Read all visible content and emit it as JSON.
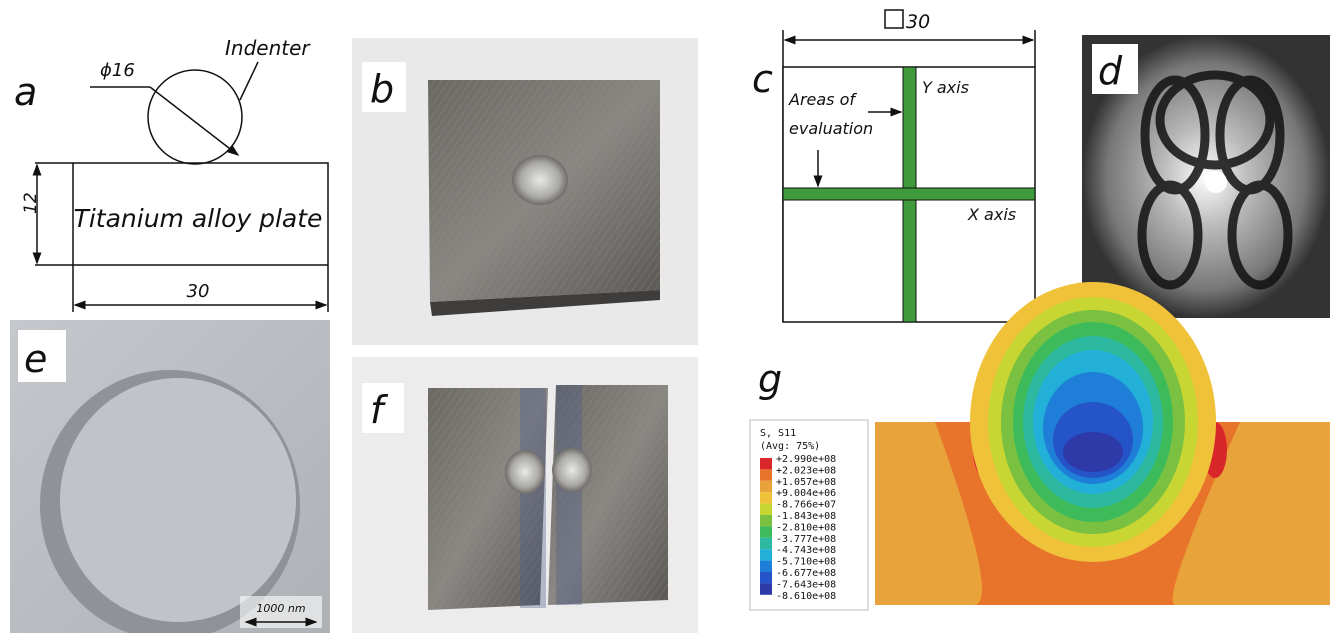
{
  "panels": {
    "a": {
      "label": "a",
      "indenter": "Indenter",
      "diameter": "ϕ16",
      "height": "12",
      "plate": "Titanium alloy plate",
      "width": "30"
    },
    "b": {
      "label": "b"
    },
    "c": {
      "label": "c",
      "size": "30",
      "areas": [
        "Areas of",
        "evaluation"
      ],
      "y_axis": "Y axis",
      "x_axis": "X axis"
    },
    "d": {
      "label": "d"
    },
    "e": {
      "label": "e",
      "scale": "1000 nm"
    },
    "f": {
      "label": "f"
    },
    "g": {
      "label": "g",
      "legend_title": "S, S11",
      "legend_subtitle": "(Avg: 75%)",
      "legend_values": [
        "+2.990e+08",
        "+2.023e+08",
        "+1.057e+08",
        "+9.004e+06",
        "-8.766e+07",
        "-1.843e+08",
        "-2.810e+08",
        "-3.777e+08",
        "-4.743e+08",
        "-5.710e+08",
        "-6.677e+08",
        "-7.643e+08",
        "-8.610e+08"
      ]
    }
  }
}
